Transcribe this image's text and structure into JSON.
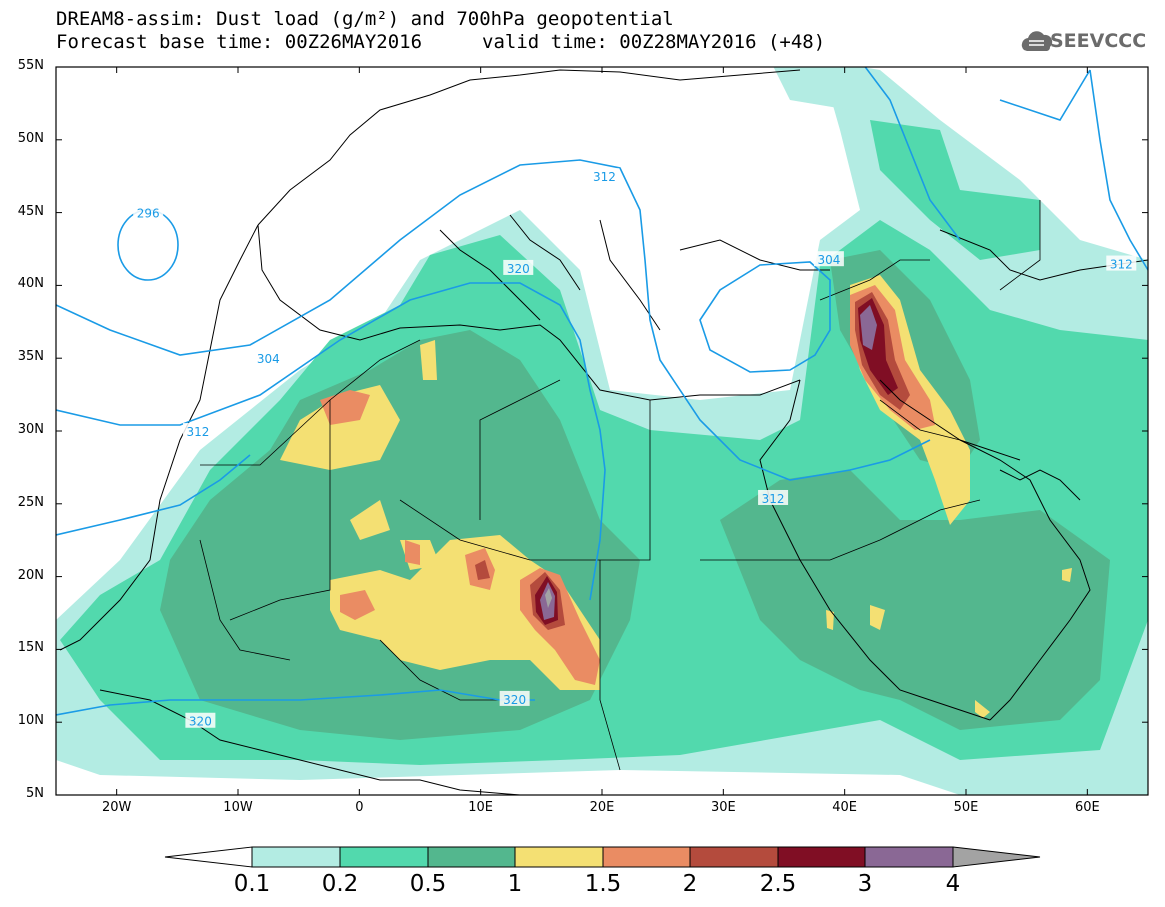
{
  "header": {
    "line1": "DREAM8-assim: Dust load (g/m²) and 700hPa geopotential",
    "line2": "Forecast base time: 00Z26MAY2016",
    "valid": "valid time: 00Z28MAY2016 (+48)",
    "logo": "SEEVCCC"
  },
  "axes": {
    "lat_labels": [
      "55N",
      "50N",
      "45N",
      "40N",
      "35N",
      "30N",
      "25N",
      "20N",
      "15N",
      "10N",
      "5N"
    ],
    "lon_labels": [
      "20W",
      "10W",
      "0",
      "10E",
      "20E",
      "30E",
      "40E",
      "50E",
      "60E"
    ],
    "lat_range": [
      5,
      55
    ],
    "lon_range": [
      -25,
      65
    ]
  },
  "colorbar": {
    "labels": [
      "0.1",
      "0.2",
      "0.5",
      "1",
      "1.5",
      "2",
      "2.5",
      "3",
      "4"
    ],
    "colors": [
      "#ffffff",
      "#b3ece3",
      "#52d9ad",
      "#53b78e",
      "#f4e073",
      "#ea8c63",
      "#b44b3d",
      "#800e24",
      "#8a6895",
      "#a3a3a3"
    ]
  },
  "contours": {
    "labels": [
      {
        "text": "296",
        "lon": -17.4,
        "lat": 45.0
      },
      {
        "text": "304",
        "lon": -7.5,
        "lat": 35.0
      },
      {
        "text": "312",
        "lon": -13.3,
        "lat": 30.0
      },
      {
        "text": "312",
        "lon": 20.2,
        "lat": 47.5
      },
      {
        "text": "320",
        "lon": 13.1,
        "lat": 41.2
      },
      {
        "text": "304",
        "lon": 38.7,
        "lat": 41.8
      },
      {
        "text": "312",
        "lon": 34.1,
        "lat": 25.4
      },
      {
        "text": "312",
        "lon": 62.8,
        "lat": 41.5
      },
      {
        "text": "320",
        "lon": 12.8,
        "lat": 11.6
      },
      {
        "text": "320",
        "lon": -13.1,
        "lat": 10.1
      }
    ],
    "line_color": "#1a9be6"
  }
}
